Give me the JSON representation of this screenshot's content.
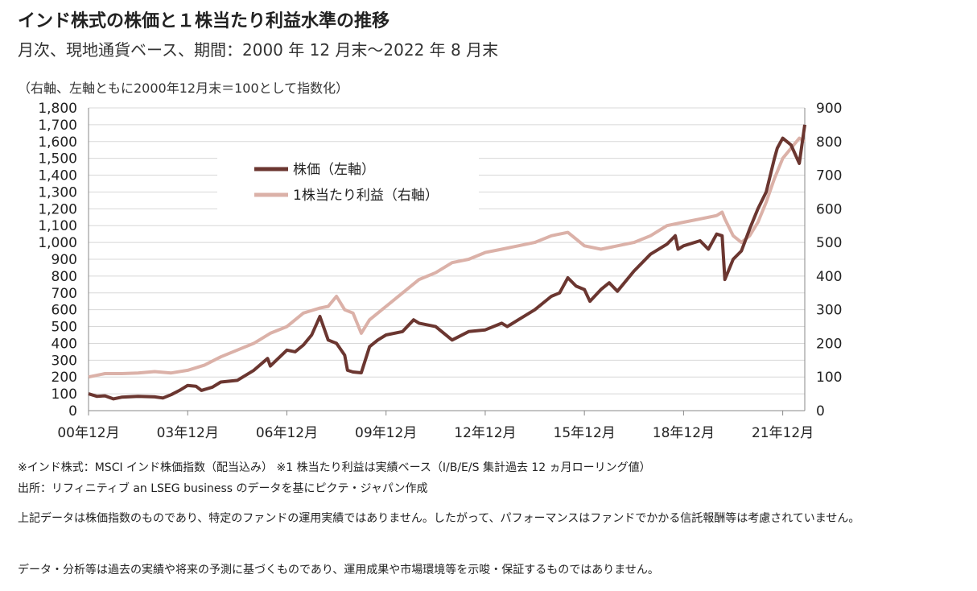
{
  "header": {
    "title": "インド株式の株価と１株当たり利益水準の推移",
    "subtitle": "月次、現地通貨ベース、期間：2000 年 12 月末～2022 年 8 月末",
    "note": "（右軸、左軸ともに2000年12月末＝100として指数化）"
  },
  "chart_data": {
    "type": "line",
    "x_axis": {
      "tick_labels": [
        "00年12月",
        "03年12月",
        "06年12月",
        "09年12月",
        "12年12月",
        "15年12月",
        "18年12月",
        "21年12月"
      ],
      "range": [
        "2000-12",
        "2022-08"
      ]
    },
    "y_left": {
      "min": 0,
      "max": 1800,
      "step": 100,
      "tick_labels": [
        "0",
        "100",
        "200",
        "300",
        "400",
        "500",
        "600",
        "700",
        "800",
        "900",
        "1,000",
        "1,100",
        "1,200",
        "1,300",
        "1,400",
        "1,500",
        "1,600",
        "1,700",
        "1,800"
      ]
    },
    "y_right": {
      "min": 0,
      "max": 900,
      "step": 100,
      "tick_labels": [
        "0",
        "100",
        "200",
        "300",
        "400",
        "500",
        "600",
        "700",
        "800",
        "900"
      ]
    },
    "grid": true,
    "legend_position": "top-left",
    "series": [
      {
        "name": "株価（左軸）",
        "axis": "left",
        "color": "#6b3630",
        "points": [
          [
            "2000-12",
            100
          ],
          [
            "2001-03",
            85
          ],
          [
            "2001-06",
            88
          ],
          [
            "2001-09",
            70
          ],
          [
            "2001-12",
            80
          ],
          [
            "2002-06",
            85
          ],
          [
            "2002-12",
            82
          ],
          [
            "2003-03",
            75
          ],
          [
            "2003-06",
            95
          ],
          [
            "2003-09",
            120
          ],
          [
            "2003-12",
            150
          ],
          [
            "2004-03",
            145
          ],
          [
            "2004-05",
            120
          ],
          [
            "2004-09",
            140
          ],
          [
            "2004-12",
            170
          ],
          [
            "2005-06",
            180
          ],
          [
            "2005-12",
            240
          ],
          [
            "2006-05",
            310
          ],
          [
            "2006-06",
            265
          ],
          [
            "2006-12",
            360
          ],
          [
            "2007-03",
            350
          ],
          [
            "2007-06",
            390
          ],
          [
            "2007-09",
            450
          ],
          [
            "2007-12",
            560
          ],
          [
            "2008-03",
            420
          ],
          [
            "2008-06",
            400
          ],
          [
            "2008-09",
            330
          ],
          [
            "2008-10",
            240
          ],
          [
            "2008-12",
            230
          ],
          [
            "2009-03",
            225
          ],
          [
            "2009-06",
            380
          ],
          [
            "2009-09",
            420
          ],
          [
            "2009-12",
            450
          ],
          [
            "2010-06",
            470
          ],
          [
            "2010-10",
            540
          ],
          [
            "2010-12",
            520
          ],
          [
            "2011-06",
            500
          ],
          [
            "2011-12",
            420
          ],
          [
            "2012-06",
            470
          ],
          [
            "2012-12",
            480
          ],
          [
            "2013-06",
            520
          ],
          [
            "2013-08",
            500
          ],
          [
            "2013-12",
            540
          ],
          [
            "2014-06",
            600
          ],
          [
            "2014-12",
            680
          ],
          [
            "2015-03",
            700
          ],
          [
            "2015-06",
            790
          ],
          [
            "2015-09",
            740
          ],
          [
            "2015-12",
            720
          ],
          [
            "2016-02",
            650
          ],
          [
            "2016-06",
            720
          ],
          [
            "2016-09",
            760
          ],
          [
            "2016-12",
            710
          ],
          [
            "2017-06",
            830
          ],
          [
            "2017-12",
            930
          ],
          [
            "2018-06",
            990
          ],
          [
            "2018-09",
            1040
          ],
          [
            "2018-10",
            960
          ],
          [
            "2018-12",
            980
          ],
          [
            "2019-06",
            1010
          ],
          [
            "2019-09",
            960
          ],
          [
            "2019-12",
            1050
          ],
          [
            "2020-02",
            1040
          ],
          [
            "2020-03",
            780
          ],
          [
            "2020-06",
            900
          ],
          [
            "2020-09",
            950
          ],
          [
            "2020-12",
            1080
          ],
          [
            "2021-03",
            1200
          ],
          [
            "2021-06",
            1300
          ],
          [
            "2021-09",
            1500
          ],
          [
            "2021-10",
            1560
          ],
          [
            "2021-12",
            1620
          ],
          [
            "2022-03",
            1580
          ],
          [
            "2022-06",
            1470
          ],
          [
            "2022-08",
            1700
          ]
        ]
      },
      {
        "name": "1株当たり利益（右軸）",
        "axis": "right",
        "color": "#dbb1a8",
        "points": [
          [
            "2000-12",
            100
          ],
          [
            "2001-06",
            110
          ],
          [
            "2001-12",
            110
          ],
          [
            "2002-06",
            112
          ],
          [
            "2002-12",
            116
          ],
          [
            "2003-06",
            112
          ],
          [
            "2003-12",
            120
          ],
          [
            "2004-06",
            135
          ],
          [
            "2004-12",
            160
          ],
          [
            "2005-06",
            180
          ],
          [
            "2005-12",
            200
          ],
          [
            "2006-06",
            230
          ],
          [
            "2006-12",
            250
          ],
          [
            "2007-06",
            290
          ],
          [
            "2007-12",
            305
          ],
          [
            "2008-03",
            310
          ],
          [
            "2008-06",
            340
          ],
          [
            "2008-09",
            300
          ],
          [
            "2008-12",
            290
          ],
          [
            "2009-03",
            230
          ],
          [
            "2009-06",
            270
          ],
          [
            "2009-12",
            310
          ],
          [
            "2010-06",
            350
          ],
          [
            "2010-12",
            390
          ],
          [
            "2011-06",
            410
          ],
          [
            "2011-12",
            440
          ],
          [
            "2012-06",
            450
          ],
          [
            "2012-12",
            470
          ],
          [
            "2013-06",
            480
          ],
          [
            "2013-12",
            490
          ],
          [
            "2014-06",
            500
          ],
          [
            "2014-12",
            520
          ],
          [
            "2015-06",
            530
          ],
          [
            "2015-12",
            490
          ],
          [
            "2016-06",
            480
          ],
          [
            "2016-12",
            490
          ],
          [
            "2017-06",
            500
          ],
          [
            "2017-12",
            520
          ],
          [
            "2018-06",
            550
          ],
          [
            "2018-12",
            560
          ],
          [
            "2019-06",
            570
          ],
          [
            "2019-12",
            580
          ],
          [
            "2020-02",
            590
          ],
          [
            "2020-03",
            570
          ],
          [
            "2020-06",
            520
          ],
          [
            "2020-09",
            500
          ],
          [
            "2020-12",
            520
          ],
          [
            "2021-03",
            560
          ],
          [
            "2021-06",
            620
          ],
          [
            "2021-09",
            690
          ],
          [
            "2021-12",
            750
          ],
          [
            "2022-03",
            780
          ],
          [
            "2022-06",
            810
          ],
          [
            "2022-08",
            800
          ]
        ]
      }
    ]
  },
  "footer": {
    "note1": "※インド株式：MSCI インド株価指数（配当込み） ※1 株当たり利益は実績ベース（I/B/E/S 集計過去 12 ヵ月ローリング値）",
    "source": "出所：リフィニティブ an LSEG business のデータを基にピクテ・ジャパン作成",
    "disclaimer1": "上記データは株価指数のものであり、特定のファンドの運用実績ではありません。したがって、パフォーマンスはファンドでかかる信託報酬等は考慮されていません。",
    "disclaimer2": "データ・分析等は過去の実績や将来の予測に基づくものであり、運用成果や市場環境等を示唆・保証するものではありません。"
  }
}
